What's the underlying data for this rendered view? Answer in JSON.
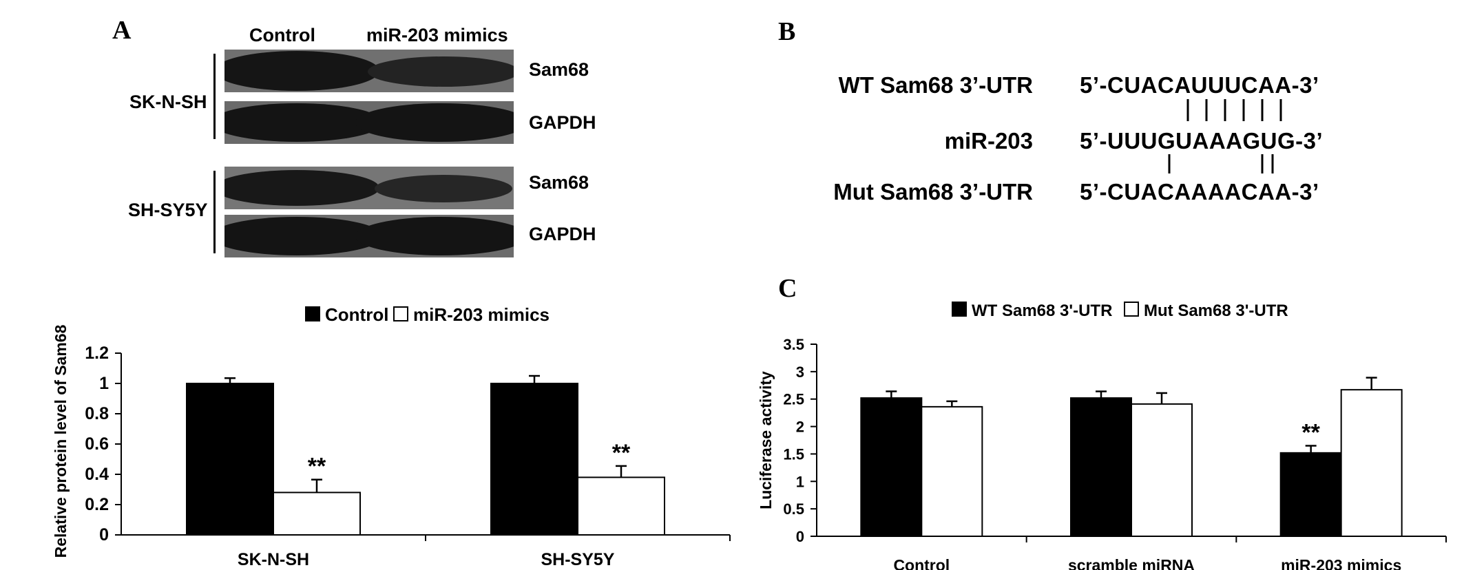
{
  "panel_a": {
    "letter": "A",
    "lanes": [
      "Control",
      "miR-203 mimics"
    ],
    "cell_lines": [
      "SK-N-SH",
      "SH-SY5Y"
    ],
    "blot_rows": [
      {
        "protein": "Sam68",
        "cell_line": "SK-N-SH"
      },
      {
        "protein": "GAPDH",
        "cell_line": "SK-N-SH"
      },
      {
        "protein": "Sam68",
        "cell_line": "SH-SY5Y"
      },
      {
        "protein": "GAPDH",
        "cell_line": "SH-SY5Y"
      }
    ]
  },
  "panel_b": {
    "letter": "B",
    "rows": [
      {
        "name": "WT Sam68 3’-UTR",
        "sequence": "5’-CUACAUUUCAA-3’"
      },
      {
        "name": "miR-203",
        "sequence": "5’-UUUGUAAAGUG-3’"
      },
      {
        "name": "Mut Sam68 3’-UTR",
        "sequence": "5’-CUACAAAACAA-3’"
      }
    ]
  },
  "panel_c": {
    "letter": "C"
  },
  "colors": {
    "series_1": "#000000",
    "series_2": "#ffffff",
    "blot_bg": "#6f6f6f",
    "band": "#141414"
  },
  "chart_data": [
    {
      "id": "protein",
      "type": "bar",
      "ylabel": "Relative protein level of Sam68",
      "xlabel": "",
      "categories": [
        "SK-N-SH",
        "SH-SY5Y"
      ],
      "series": [
        {
          "name": "Control",
          "values": [
            1.0,
            1.0
          ],
          "errors": [
            0.035,
            0.05
          ],
          "color": "#000000"
        },
        {
          "name": "miR-203 mimics",
          "values": [
            0.28,
            0.38
          ],
          "errors": [
            0.085,
            0.075
          ],
          "color": "#ffffff"
        }
      ],
      "annotations": [
        {
          "category": "SK-N-SH",
          "series": "miR-203 mimics",
          "text": "**"
        },
        {
          "category": "SH-SY5Y",
          "series": "miR-203 mimics",
          "text": "**"
        }
      ],
      "ylim": [
        0,
        1.2
      ],
      "yticks": [
        "0",
        "0.2",
        "0.4",
        "0.6",
        "0.8",
        "1",
        "1.2"
      ],
      "legend_position": "top-center",
      "grid": false
    },
    {
      "id": "luciferase",
      "type": "bar",
      "ylabel": "Luciferase activity",
      "xlabel": "",
      "categories": [
        "Control",
        "scramble miRNA",
        "miR-203 mimics"
      ],
      "series": [
        {
          "name": "WT Sam68 3'-UTR",
          "values": [
            2.52,
            2.52,
            1.52
          ],
          "errors": [
            0.12,
            0.12,
            0.13
          ],
          "color": "#000000"
        },
        {
          "name": "Mut Sam68 3'-UTR",
          "values": [
            2.36,
            2.41,
            2.67
          ],
          "errors": [
            0.1,
            0.2,
            0.22
          ],
          "color": "#ffffff"
        }
      ],
      "annotations": [
        {
          "category": "miR-203 mimics",
          "series": "WT Sam68 3'-UTR",
          "text": "**"
        }
      ],
      "ylim": [
        0,
        3.5
      ],
      "yticks": [
        "0",
        "0.5",
        "1",
        "1.5",
        "2",
        "2.5",
        "3",
        "3.5"
      ],
      "legend_position": "top-center",
      "grid": false
    }
  ]
}
